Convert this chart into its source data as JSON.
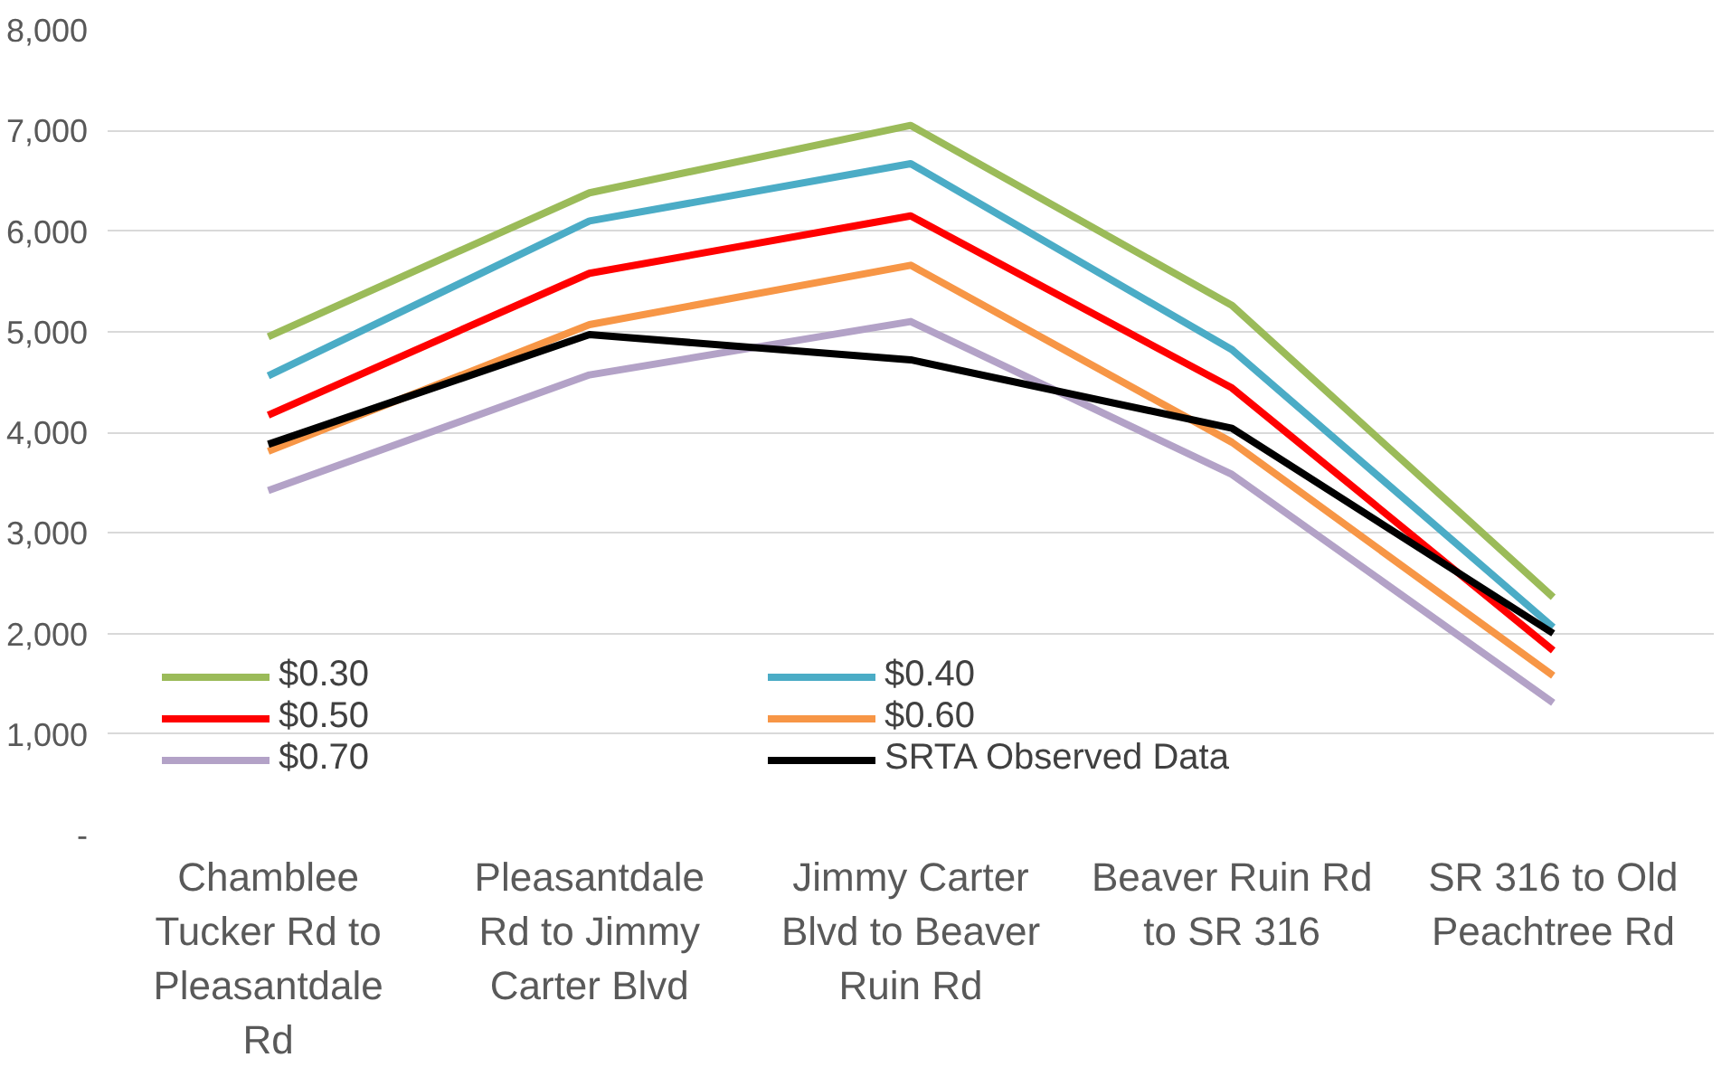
{
  "chart_data": {
    "type": "line",
    "categories": [
      "Chamblee Tucker Rd to Pleasantdale Rd",
      "Pleasantdale Rd to Jimmy Carter Blvd",
      "Jimmy Carter Blvd to Beaver Ruin Rd",
      "Beaver Ruin Rd to SR 316",
      "SR 316 to Old Peachtree Rd"
    ],
    "series": [
      {
        "name": "$0.30",
        "color": "#9bbb59",
        "values": [
          4950,
          6380,
          7050,
          5260,
          2360
        ]
      },
      {
        "name": "$0.40",
        "color": "#4bacc6",
        "values": [
          4560,
          6100,
          6670,
          4820,
          2060
        ]
      },
      {
        "name": "$0.50",
        "color": "#ff0000",
        "values": [
          4170,
          5580,
          6150,
          4440,
          1830
        ]
      },
      {
        "name": "$0.60",
        "color": "#f79646",
        "values": [
          3810,
          5070,
          5660,
          3900,
          1580
        ]
      },
      {
        "name": "$0.70",
        "color": "#b3a2c7",
        "values": [
          3420,
          4570,
          5100,
          3580,
          1310
        ]
      },
      {
        "name": "SRTA Observed Data",
        "color": "#000000",
        "values": [
          3880,
          4970,
          4720,
          4040,
          2000
        ]
      }
    ],
    "ylim": [
      0,
      8000
    ],
    "yticks": [
      {
        "value": 0,
        "label": "-"
      },
      {
        "value": 1000,
        "label": "1,000"
      },
      {
        "value": 2000,
        "label": "2,000"
      },
      {
        "value": 3000,
        "label": "3,000"
      },
      {
        "value": 4000,
        "label": "4,000"
      },
      {
        "value": 5000,
        "label": "5,000"
      },
      {
        "value": 6000,
        "label": "6,000"
      },
      {
        "value": 7000,
        "label": "7,000"
      },
      {
        "value": 8000,
        "label": "8,000"
      }
    ],
    "grid": "y",
    "legend": "bottom",
    "line_style": "solid"
  }
}
